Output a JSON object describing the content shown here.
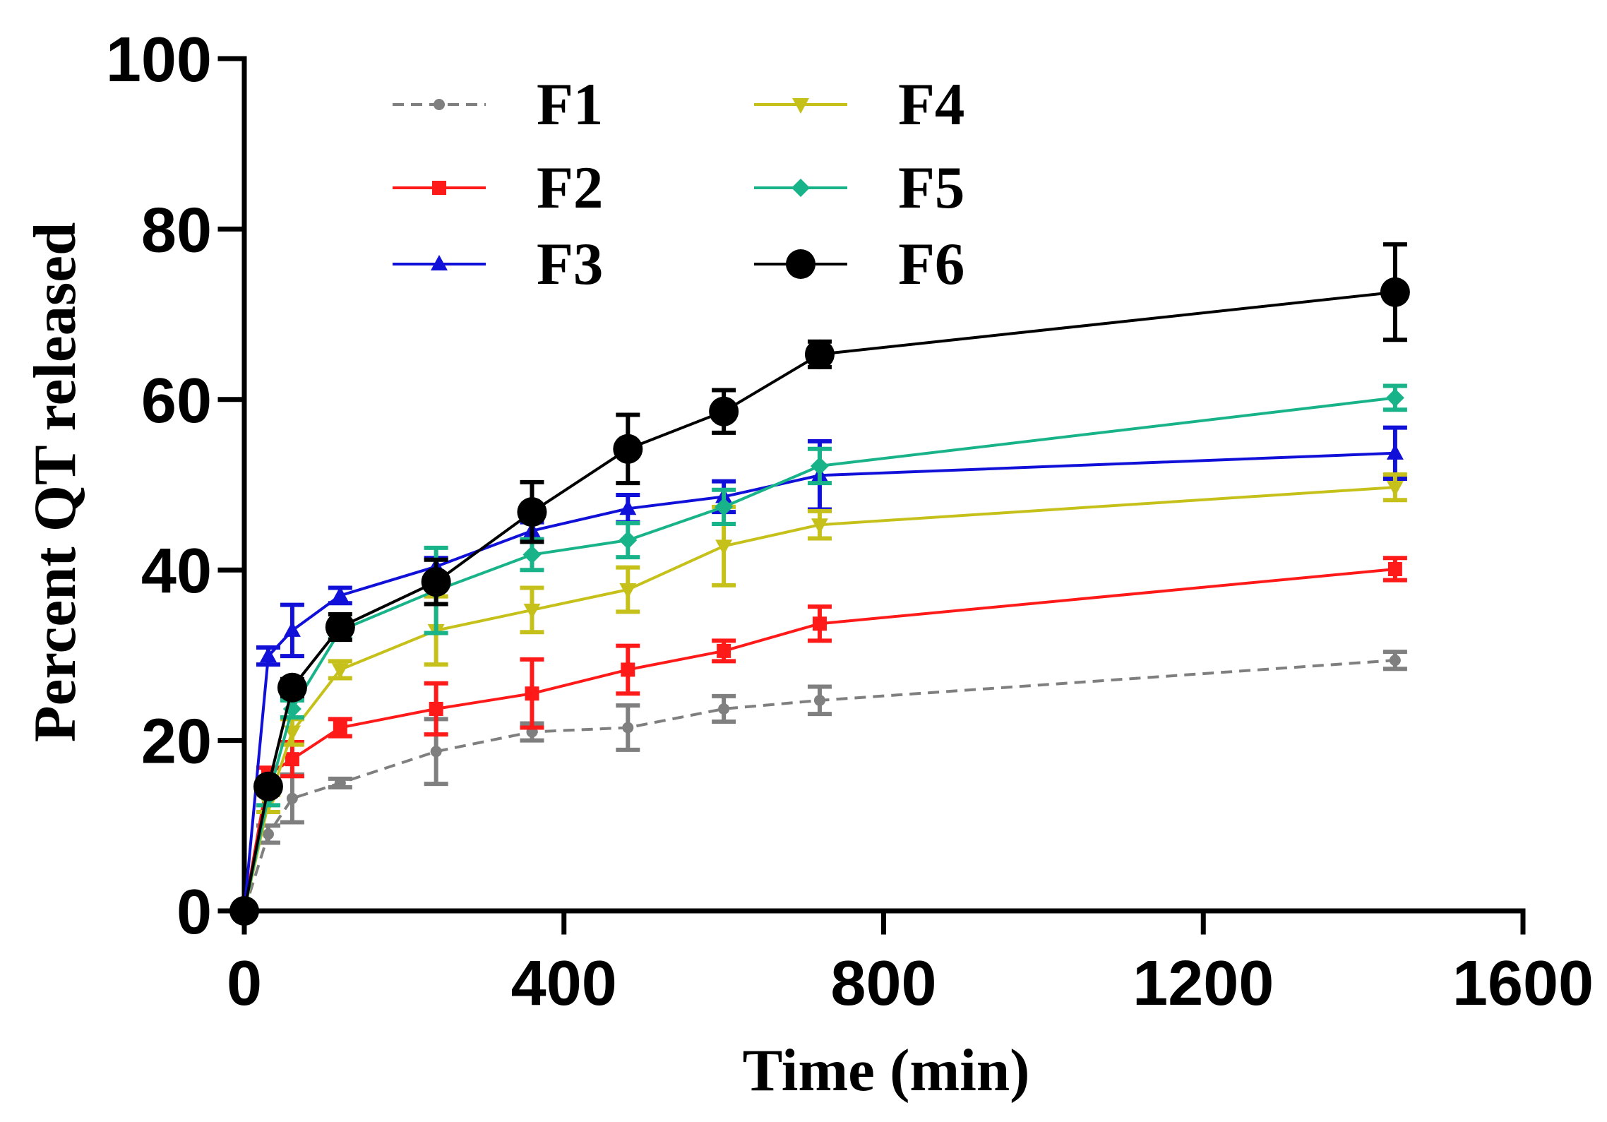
{
  "chart_data": {
    "type": "line",
    "xlabel": "Time (min)",
    "ylabel": "Percent QT released",
    "xlim": [
      0,
      1600
    ],
    "ylim": [
      0,
      100
    ],
    "x_axis": {
      "min": 0,
      "max": 1600,
      "ticks": [
        0,
        400,
        800,
        1200,
        1600
      ]
    },
    "y_axis": {
      "min": 0,
      "max": 100,
      "ticks": [
        0,
        20,
        40,
        60,
        80,
        100
      ]
    },
    "grid": false,
    "legend_placement": "top-left",
    "x": [
      0,
      30,
      60,
      120,
      240,
      360,
      480,
      600,
      720,
      1440
    ],
    "series": [
      {
        "name": "F1",
        "color": "#7f7f7f",
        "marker": "circle-small",
        "line_style": "dashed",
        "values": [
          0,
          9.0,
          13.2,
          15.0,
          18.7,
          21.0,
          21.5,
          23.7,
          24.7,
          29.4
        ],
        "error": [
          0,
          1.0,
          2.8,
          0.5,
          3.8,
          1.0,
          2.6,
          1.5,
          1.6,
          1.0
        ]
      },
      {
        "name": "F2",
        "color": "#ff1a1a",
        "marker": "square",
        "line_style": "solid",
        "values": [
          0,
          16.0,
          17.8,
          21.5,
          23.7,
          25.5,
          28.3,
          30.5,
          33.7,
          40.1
        ],
        "error": [
          0,
          0.8,
          2.0,
          1.0,
          3.0,
          4.0,
          2.8,
          1.2,
          2.0,
          1.3
        ]
      },
      {
        "name": "F3",
        "color": "#1010d8",
        "marker": "triangle-up",
        "line_style": "solid",
        "values": [
          0,
          29.9,
          32.9,
          37.0,
          40.4,
          44.6,
          47.2,
          48.6,
          51.1,
          53.7
        ],
        "error": [
          0,
          1.0,
          3.0,
          0.9,
          1.0,
          1.0,
          1.6,
          1.8,
          4.0,
          3.0
        ]
      },
      {
        "name": "F4",
        "color": "#c6c11a",
        "marker": "triangle-down",
        "line_style": "solid",
        "values": [
          0,
          12.6,
          21.0,
          28.3,
          32.9,
          35.3,
          37.7,
          42.8,
          45.3,
          49.7
        ],
        "error": [
          0,
          1.0,
          1.5,
          1.0,
          4.0,
          2.6,
          2.6,
          4.6,
          1.6,
          1.5
        ]
      },
      {
        "name": "F5",
        "color": "#19b38a",
        "marker": "diamond",
        "line_style": "solid",
        "values": [
          0,
          13.4,
          23.7,
          32.9,
          37.6,
          41.8,
          43.5,
          47.4,
          52.2,
          60.2
        ],
        "error": [
          0,
          1.0,
          1.0,
          1.0,
          5.0,
          1.8,
          2.0,
          2.0,
          2.0,
          1.4
        ]
      },
      {
        "name": "F6",
        "color": "#000000",
        "marker": "circle-large",
        "line_style": "solid",
        "values": [
          0,
          14.6,
          26.2,
          33.3,
          38.6,
          46.8,
          54.2,
          58.6,
          65.3,
          72.6
        ],
        "error": [
          0,
          0.8,
          1.0,
          1.5,
          2.6,
          3.5,
          4.0,
          2.5,
          1.5,
          5.6
        ]
      }
    ]
  }
}
